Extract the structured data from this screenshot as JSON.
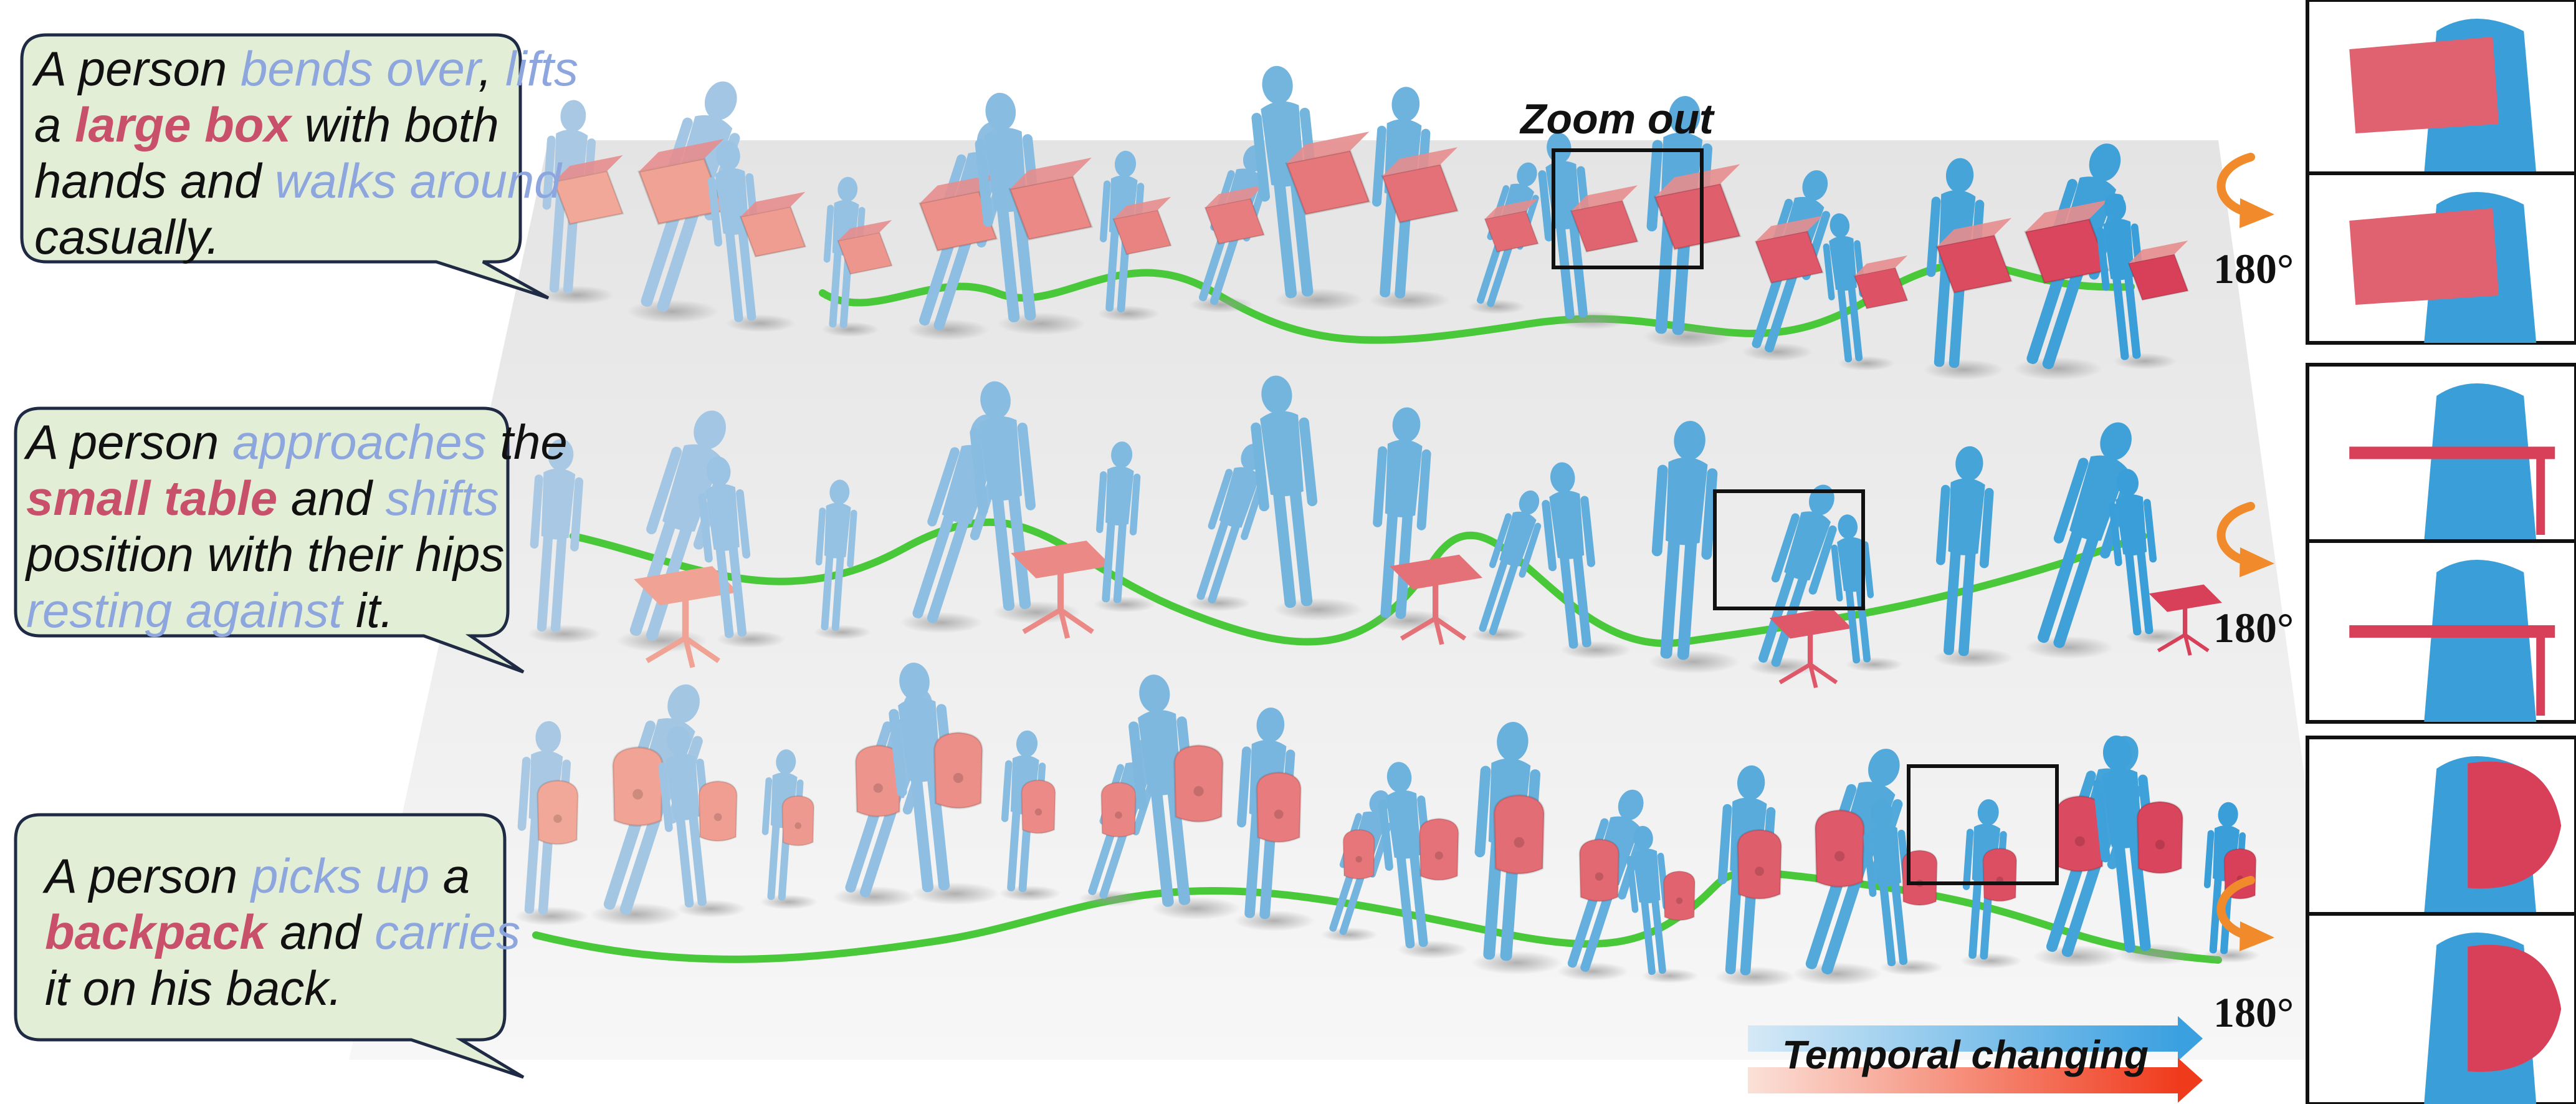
{
  "captions": [
    {
      "lines": [
        [
          {
            "t": "A person ",
            "k": "plain"
          },
          {
            "t": "bends over",
            "k": "action"
          },
          {
            "t": ", ",
            "k": "plain"
          },
          {
            "t": "lifts",
            "k": "action"
          }
        ],
        [
          {
            "t": "a ",
            "k": "plain"
          },
          {
            "t": "large box",
            "k": "object"
          },
          {
            "t": " with both",
            "k": "plain"
          }
        ],
        [
          {
            "t": "hands and ",
            "k": "plain"
          },
          {
            "t": "walks around",
            "k": "action"
          }
        ],
        [
          {
            "t": "casually.",
            "k": "plain"
          }
        ]
      ]
    },
    {
      "lines": [
        [
          {
            "t": "A person ",
            "k": "plain"
          },
          {
            "t": "approaches",
            "k": "action"
          },
          {
            "t": " the",
            "k": "plain"
          }
        ],
        [
          {
            "t": "small table",
            "k": "object"
          },
          {
            "t": " and ",
            "k": "plain"
          },
          {
            "t": "shifts",
            "k": "action"
          }
        ],
        [
          {
            "t": "position with their hips",
            "k": "plain"
          }
        ],
        [
          {
            "t": "resting against",
            "k": "action"
          },
          {
            "t": " it.",
            "k": "plain"
          }
        ]
      ]
    },
    {
      "lines": [
        [
          {
            "t": "A person ",
            "k": "plain"
          },
          {
            "t": "picks up",
            "k": "action"
          },
          {
            "t": " a",
            "k": "plain"
          }
        ],
        [
          {
            "t": "backpack",
            "k": "object"
          },
          {
            "t": " and ",
            "k": "plain"
          },
          {
            "t": "carries",
            "k": "action"
          }
        ],
        [
          {
            "t": "it on his back.",
            "k": "plain"
          }
        ]
      ]
    }
  ],
  "zoom_label": "Zoom out",
  "rotation_labels": [
    "180°",
    "180°",
    "180°"
  ],
  "temporal_label": "Temporal changing",
  "colors": {
    "bubble_fill": "#e3eed7",
    "bubble_stroke": "#1f2a44",
    "action_text": "#8ea6de",
    "object_text": "#c9506a",
    "human_early": "#a8c8e4",
    "human_late": "#3a9fd8",
    "object_early": "#f2a898",
    "object_late": "#d8405a",
    "trajectory": "#49c93a",
    "rotate_arrow": "#f08a2a",
    "arrow_blue_start": "#d5e9f7",
    "arrow_blue_end": "#3aa0e0",
    "arrow_red_start": "#fbe1d8",
    "arrow_red_end": "#f03a1c"
  },
  "icons": {
    "rotate": "curved-rotate-arrow-icon",
    "temporal_blue": "gradient-arrow-blue-icon",
    "temporal_red": "gradient-arrow-red-icon"
  }
}
